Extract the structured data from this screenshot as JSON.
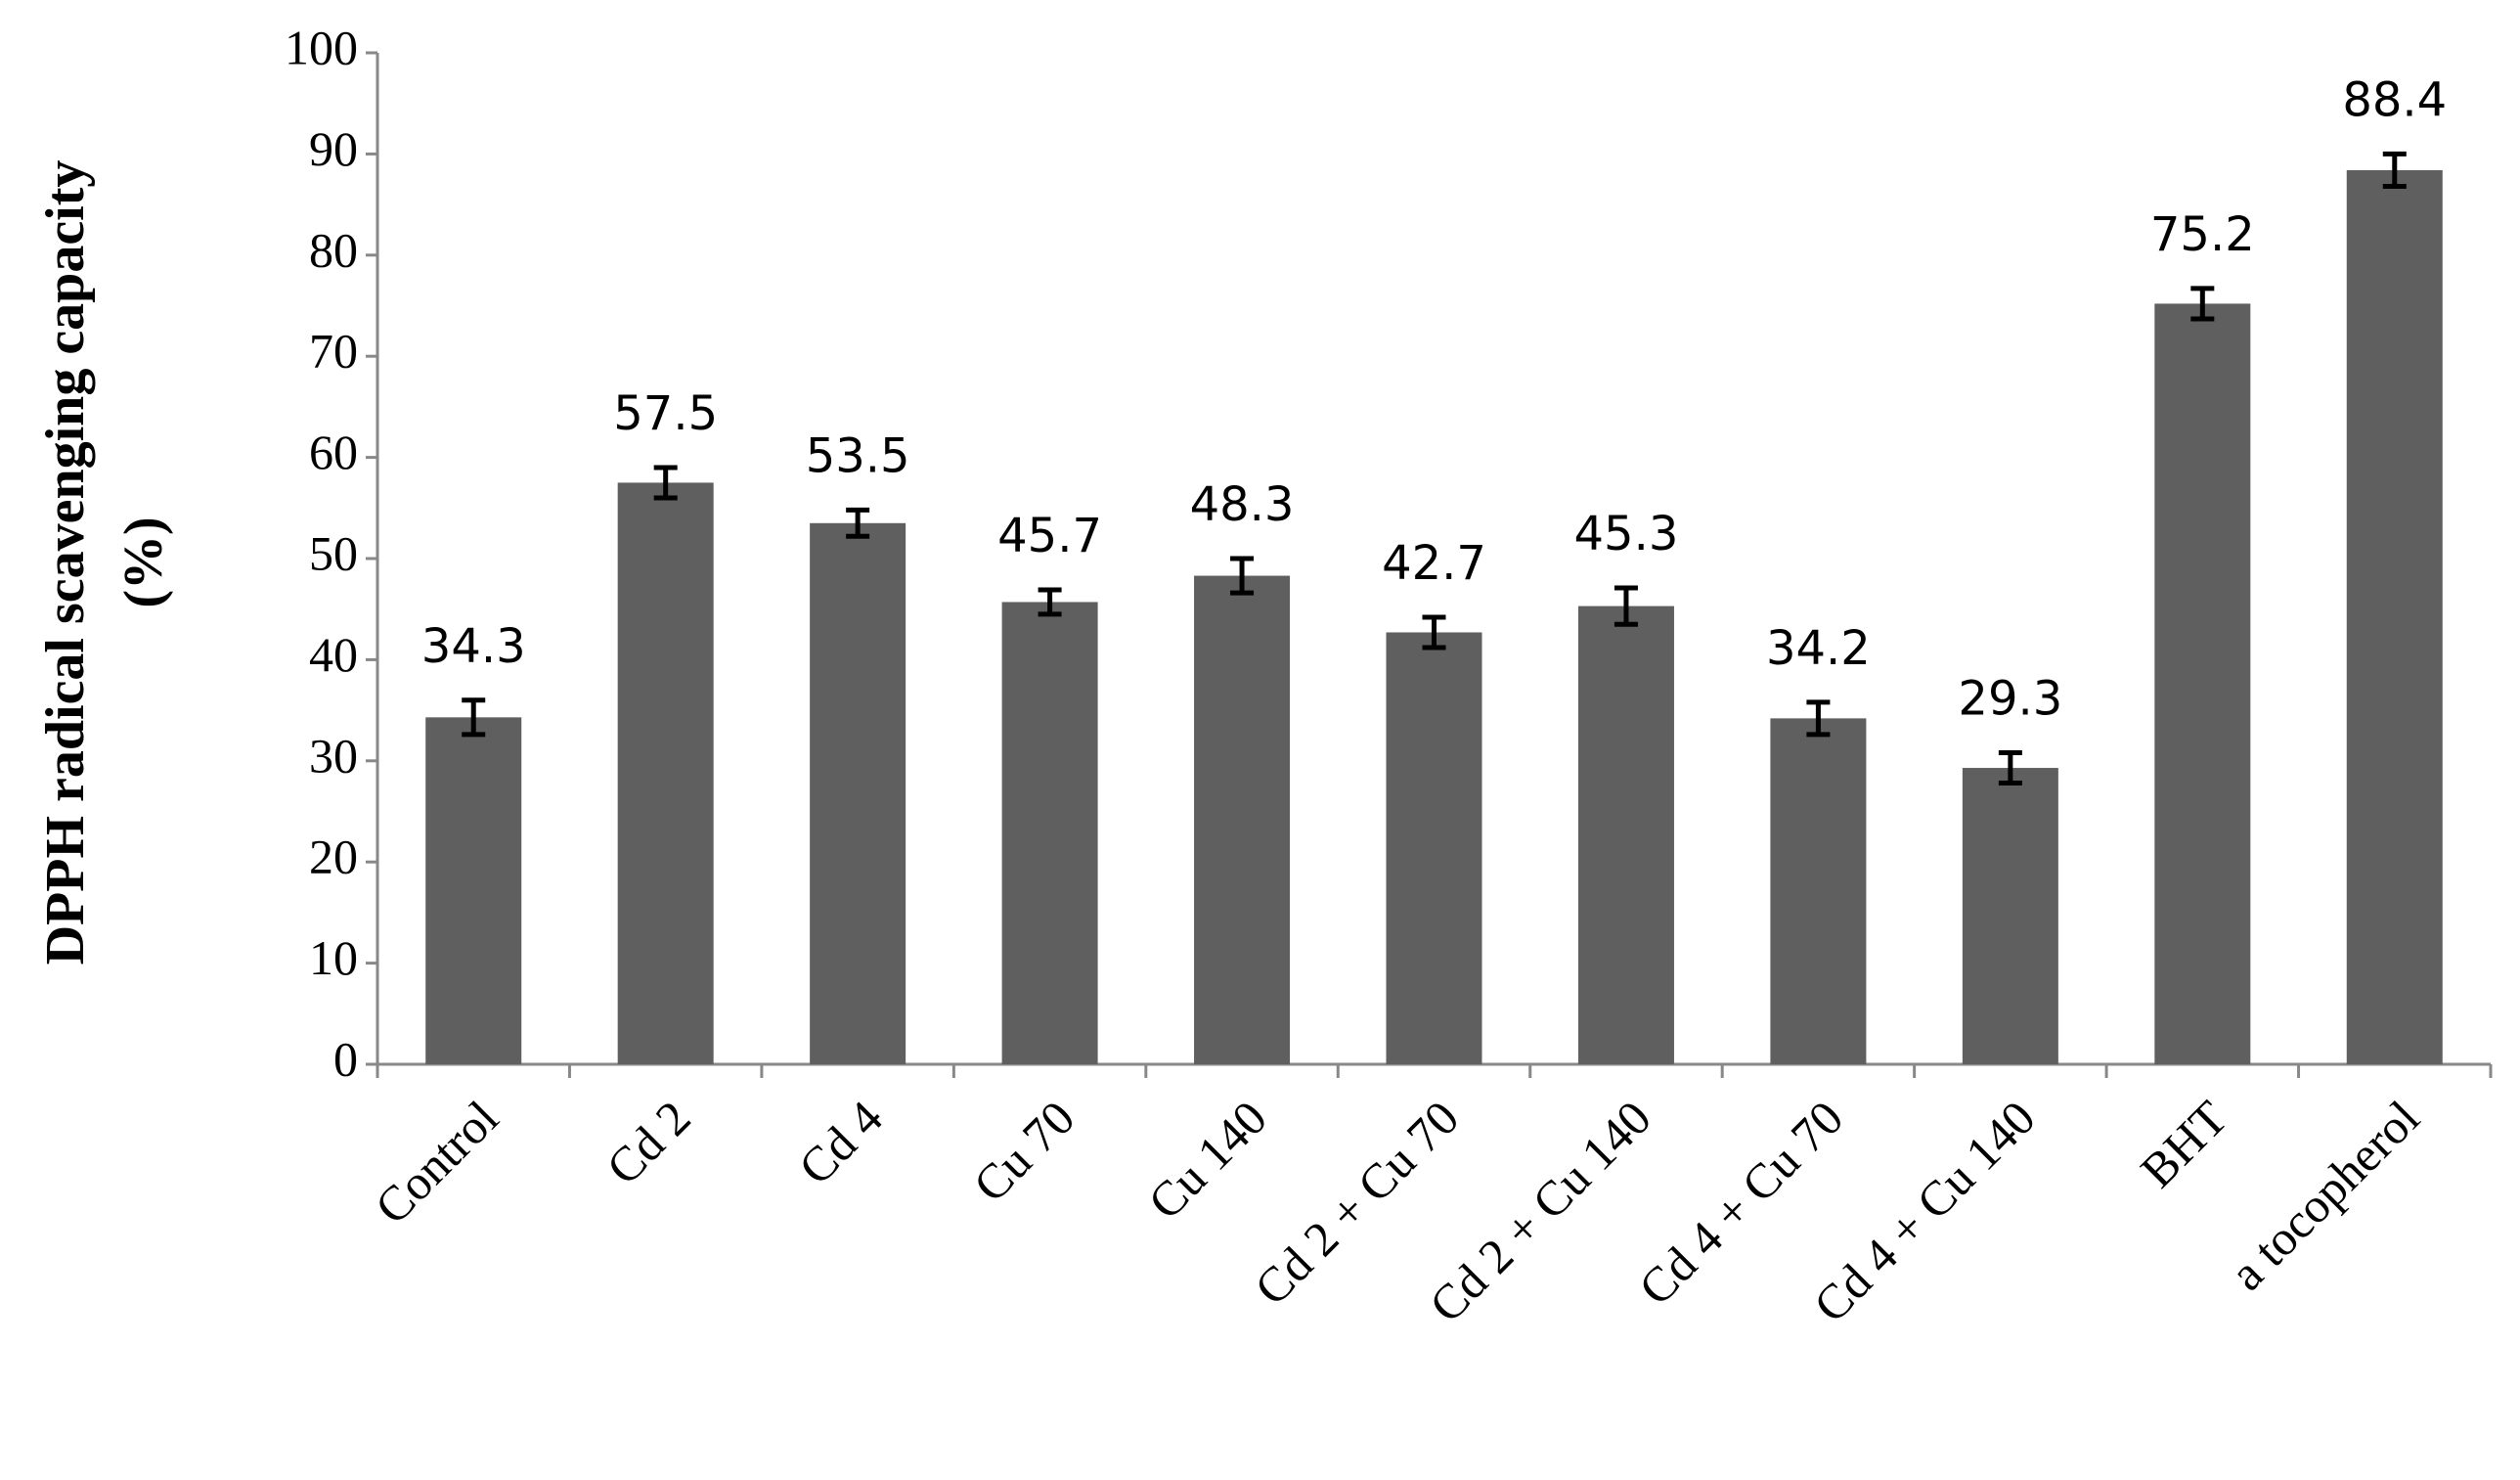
{
  "chart_data": {
    "type": "bar",
    "ylabel": [
      "DPPH radical  scavenging capacity",
      "(%)"
    ],
    "categories": [
      "Control",
      "Cd 2",
      "Cd 4",
      "Cu 70",
      "Cu 140",
      "Cd 2 + Cu 70",
      "Cd 2 + Cu 140",
      "Cd 4 + Cu 70",
      "Cd 4 + Cu 140",
      "BHT",
      "a tocopherol"
    ],
    "values": [
      34.3,
      57.5,
      53.5,
      45.7,
      48.3,
      42.7,
      45.3,
      34.2,
      29.3,
      75.2,
      88.4
    ],
    "errors": [
      1.7,
      1.5,
      1.3,
      1.2,
      1.7,
      1.5,
      1.8,
      1.6,
      1.5,
      1.5,
      1.6
    ],
    "color": "#5f5f5f",
    "ylim": [
      0,
      100
    ],
    "yticks": [
      0,
      10,
      20,
      30,
      40,
      50,
      60,
      70,
      80,
      90,
      100
    ],
    "grid": false
  }
}
